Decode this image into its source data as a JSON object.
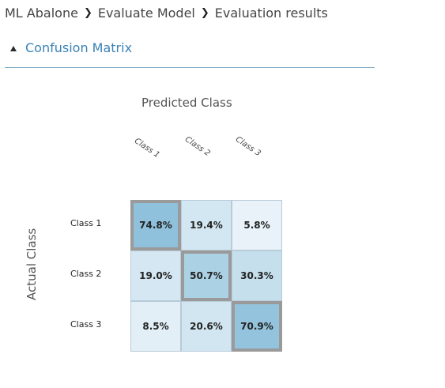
{
  "breadcrumb": {
    "items": [
      "ML Abalone",
      "Evaluate Model",
      "Evaluation results"
    ]
  },
  "section": {
    "title": "Confusion Matrix",
    "expanded": true
  },
  "matrix": {
    "predicted_axis_label": "Predicted Class",
    "actual_axis_label": "Actual Class",
    "columns": [
      "Class 1",
      "Class 2",
      "Class 3"
    ],
    "rows": [
      {
        "label": "Class 1",
        "cells": [
          "74.8%",
          "19.4%",
          "5.8%"
        ],
        "values": [
          74.8,
          19.4,
          5.8
        ]
      },
      {
        "label": "Class 2",
        "cells": [
          "19.0%",
          "50.7%",
          "30.3%"
        ],
        "values": [
          19.0,
          50.7,
          30.3
        ]
      },
      {
        "label": "Class 3",
        "cells": [
          "8.5%",
          "20.6%",
          "70.9%"
        ],
        "values": [
          8.5,
          20.6,
          70.9
        ]
      }
    ],
    "colors": {
      "low": "#f3f8fc",
      "high": "#8fc1dc",
      "diagonal_border": "#9a9a9a",
      "cell_border": "#b8cbd9"
    }
  },
  "colors": {
    "accent": "#3a82b5",
    "rule": "#7fa9c6"
  }
}
